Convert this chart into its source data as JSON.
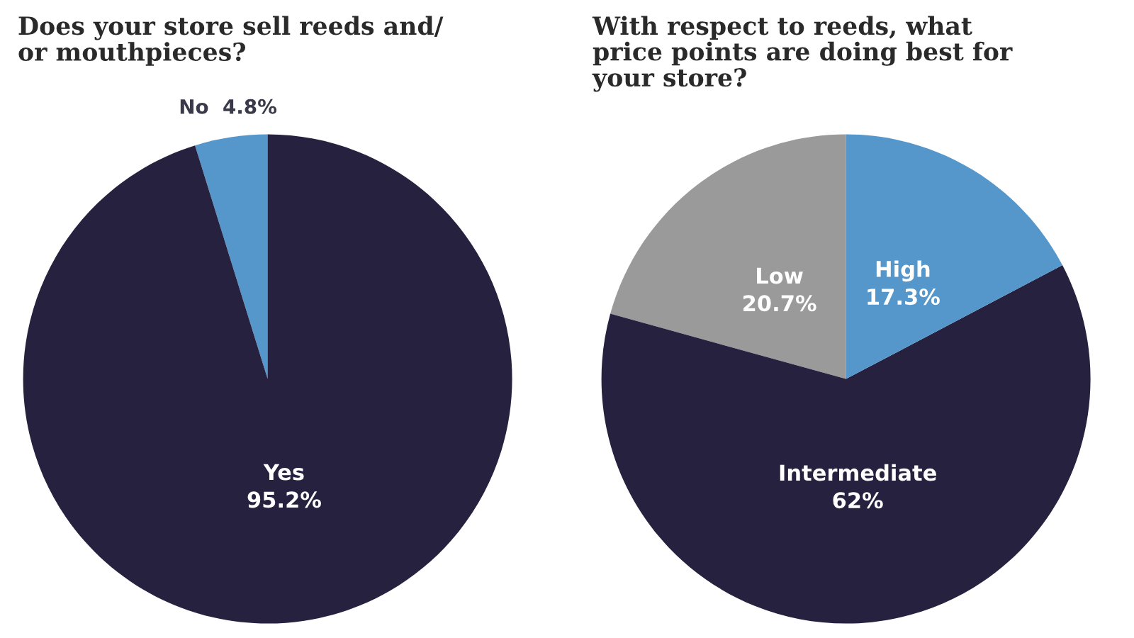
{
  "chart_data": [
    {
      "type": "pie",
      "title": "Does your store sell reeds and/\nor mouthpieces?",
      "categories": [
        "No",
        "Yes"
      ],
      "values": [
        4.8,
        95.2
      ],
      "value_labels": [
        "4.8%",
        "95.2%"
      ],
      "colors": [
        "#5596cb",
        "#25213f"
      ]
    },
    {
      "type": "pie",
      "title": "With respect to reeds, what\nprice points are doing best for\nyour store?",
      "categories": [
        "Low",
        "Intermediate",
        "High"
      ],
      "values": [
        20.7,
        62,
        17.3
      ],
      "value_labels": [
        "20.7%",
        "62%",
        "17.3%"
      ],
      "colors": [
        "#9a9a9a",
        "#25213f",
        "#5596cb"
      ]
    }
  ]
}
